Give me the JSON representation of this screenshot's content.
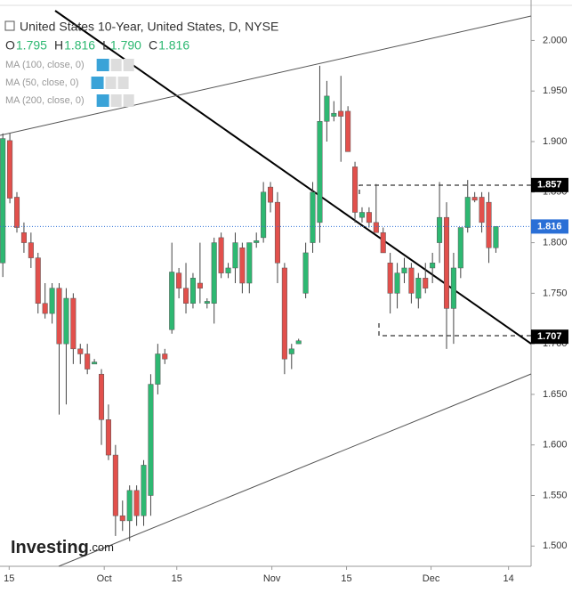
{
  "chart_data": {
    "type": "candlestick",
    "title": "United States 10-Year, United States, D, NYSE",
    "ohlc_header": [
      {
        "key": "O",
        "value": "1.795"
      },
      {
        "key": "H",
        "value": "1.816"
      },
      {
        "key": "L",
        "value": "1.790"
      },
      {
        "key": "C",
        "value": "1.816"
      }
    ],
    "indicators": [
      "MA (100, close, 0)",
      "MA (50, close, 0)",
      "MA (200, close, 0)"
    ],
    "logo": "Investing",
    "logo_suffix": ".com",
    "up_color": "#2eb872",
    "down_color": "#e2504c",
    "xlim": [
      -0.4,
      75
    ],
    "xticks": [
      {
        "value": 0.9,
        "label": "15"
      },
      {
        "value": 14.4,
        "label": "Oct"
      },
      {
        "value": 24.7,
        "label": "15"
      },
      {
        "value": 38.2,
        "label": "Nov"
      },
      {
        "value": 48.8,
        "label": "15"
      },
      {
        "value": 60.8,
        "label": "Dec"
      },
      {
        "value": 71.8,
        "label": "14"
      }
    ],
    "ylim": [
      1.48,
      2.04
    ],
    "yticks": [
      {
        "value": 1.5,
        "label": "1.500"
      },
      {
        "value": 1.55,
        "label": "1.550"
      },
      {
        "value": 1.6,
        "label": "1.600"
      },
      {
        "value": 1.65,
        "label": "1.650"
      },
      {
        "value": 1.7,
        "label": "1.700"
      },
      {
        "value": 1.75,
        "label": "1.750"
      },
      {
        "value": 1.8,
        "label": "1.800"
      },
      {
        "value": 1.85,
        "label": "1.850"
      },
      {
        "value": 1.9,
        "label": "1.900"
      },
      {
        "value": 1.95,
        "label": "1.950"
      },
      {
        "value": 2.0,
        "label": "2.000"
      }
    ],
    "price_tags": [
      {
        "value": 1.857,
        "color": "#000000"
      },
      {
        "value": 1.816,
        "color": "#2a6fd6"
      },
      {
        "value": 1.707,
        "color": "#000000"
      }
    ],
    "open": [
      1.78,
      1.901,
      1.845,
      1.81,
      1.8,
      1.785,
      1.74,
      1.73,
      1.755,
      1.7,
      1.745,
      1.695,
      1.69,
      1.68,
      1.67,
      1.625,
      1.59,
      1.53,
      1.525,
      1.555,
      1.53,
      1.55,
      1.66,
      1.69,
      1.714,
      1.77,
      1.755,
      1.74,
      1.76,
      1.74,
      1.74,
      1.805,
      1.77,
      1.775,
      1.795,
      1.76,
      1.8,
      1.805,
      1.855,
      1.84,
      1.775,
      1.69,
      1.7,
      1.75,
      1.8,
      1.82,
      1.92,
      1.925,
      1.93,
      1.93,
      1.875,
      1.825,
      1.83,
      1.82,
      1.81,
      1.78,
      1.75,
      1.77,
      1.775,
      1.745,
      1.765,
      1.775,
      1.8,
      1.825,
      1.735,
      1.775,
      1.815,
      1.845,
      1.845,
      1.84,
      1.795
    ],
    "high": [
      1.908,
      1.908,
      1.85,
      1.82,
      1.81,
      1.79,
      1.76,
      1.76,
      1.76,
      1.755,
      1.75,
      1.7,
      1.7,
      1.685,
      1.675,
      1.64,
      1.6,
      1.545,
      1.56,
      1.56,
      1.585,
      1.67,
      1.7,
      1.695,
      1.8,
      1.775,
      1.78,
      1.77,
      1.8,
      1.745,
      1.805,
      1.81,
      1.78,
      1.81,
      1.8,
      1.8,
      1.81,
      1.86,
      1.86,
      1.85,
      1.78,
      1.7,
      1.705,
      1.8,
      1.86,
      1.975,
      1.96,
      1.94,
      1.965,
      1.935,
      1.88,
      1.835,
      1.835,
      1.858,
      1.815,
      1.79,
      1.78,
      1.785,
      1.78,
      1.77,
      1.78,
      1.79,
      1.86,
      1.84,
      1.79,
      1.815,
      1.862,
      1.85,
      1.85,
      1.85,
      1.816
    ],
    "low": [
      1.766,
      1.839,
      1.81,
      1.79,
      1.775,
      1.73,
      1.725,
      1.72,
      1.63,
      1.64,
      1.68,
      1.68,
      1.67,
      1.68,
      1.6,
      1.585,
      1.51,
      1.515,
      1.505,
      1.52,
      1.52,
      1.53,
      1.65,
      1.68,
      1.71,
      1.745,
      1.73,
      1.735,
      1.74,
      1.735,
      1.72,
      1.765,
      1.765,
      1.76,
      1.75,
      1.75,
      1.795,
      1.8,
      1.83,
      1.76,
      1.67,
      1.675,
      1.7,
      1.745,
      1.79,
      1.8,
      1.9,
      1.92,
      1.88,
      1.89,
      1.82,
      1.82,
      1.815,
      1.81,
      1.79,
      1.73,
      1.735,
      1.76,
      1.74,
      1.735,
      1.75,
      1.76,
      1.78,
      1.695,
      1.7,
      1.765,
      1.81,
      1.84,
      1.81,
      1.78,
      1.79
    ],
    "close": [
      1.903,
      1.844,
      1.815,
      1.8,
      1.785,
      1.74,
      1.73,
      1.755,
      1.7,
      1.745,
      1.695,
      1.69,
      1.675,
      1.682,
      1.625,
      1.59,
      1.53,
      1.525,
      1.555,
      1.53,
      1.58,
      1.66,
      1.69,
      1.685,
      1.771,
      1.755,
      1.74,
      1.765,
      1.755,
      1.742,
      1.8,
      1.77,
      1.775,
      1.8,
      1.76,
      1.8,
      1.802,
      1.85,
      1.84,
      1.78,
      1.685,
      1.695,
      1.703,
      1.79,
      1.85,
      1.92,
      1.945,
      1.928,
      1.925,
      1.89,
      1.83,
      1.83,
      1.82,
      1.81,
      1.79,
      1.75,
      1.77,
      1.775,
      1.75,
      1.765,
      1.755,
      1.78,
      1.825,
      1.735,
      1.775,
      1.815,
      1.845,
      1.842,
      1.82,
      1.795,
      1.816
    ]
  }
}
